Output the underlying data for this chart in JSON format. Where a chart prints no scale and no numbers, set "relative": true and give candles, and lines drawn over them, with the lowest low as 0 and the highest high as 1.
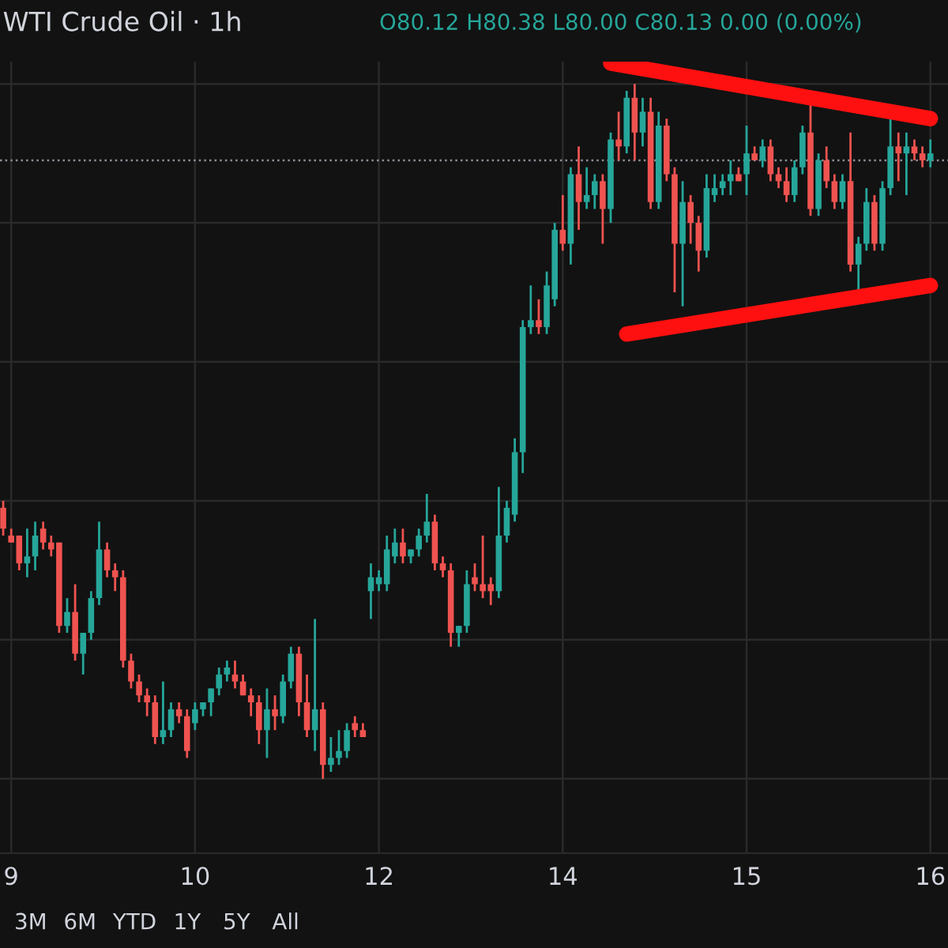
{
  "chart_data": {
    "type": "candlestick",
    "title": "WTI Crude Oil · 1h",
    "relative": true,
    "tick_labels": "x",
    "grid": true,
    "annotations": [
      "O80.12 H80.38 L80.00 C80.13 0.00 (0.00%)",
      "3M",
      "6M",
      "YTD",
      "1Y",
      "5Y",
      "All"
    ],
    "categories": [
      null,
      "9",
      null,
      null,
      null,
      null,
      null,
      null,
      null,
      null,
      null,
      null,
      null,
      null,
      null,
      null,
      null,
      null,
      null,
      null,
      null,
      null,
      null,
      null,
      "10",
      null,
      null,
      null,
      null,
      null,
      null,
      null,
      null,
      null,
      null,
      null,
      null,
      null,
      null,
      null,
      null,
      null,
      null,
      null,
      null,
      null,
      null,
      "12",
      null,
      null,
      null,
      null,
      null,
      null,
      null,
      null,
      null,
      null,
      null,
      null,
      null,
      null,
      null,
      null,
      null,
      null,
      null,
      null,
      null,
      null,
      "14",
      null,
      null,
      null,
      null,
      null,
      null,
      null,
      null,
      null,
      null,
      null,
      null,
      null,
      null,
      null,
      null,
      null,
      null,
      null,
      null,
      null,
      null,
      "15",
      null,
      null,
      null,
      null,
      null,
      null,
      null,
      null,
      null,
      null,
      null,
      null,
      null,
      null,
      null,
      null,
      null,
      null,
      null,
      null,
      null,
      null,
      "16"
    ],
    "ohlc": [
      [
        0.39,
        0.4,
        0.35,
        0.36
      ],
      [
        0.35,
        0.36,
        0.34,
        0.34
      ],
      [
        0.35,
        0.35,
        0.3,
        0.31
      ],
      [
        0.31,
        0.36,
        0.29,
        0.32
      ],
      [
        0.32,
        0.37,
        0.3,
        0.35
      ],
      [
        0.36,
        0.37,
        0.33,
        0.34
      ],
      [
        0.34,
        0.35,
        0.32,
        0.33
      ],
      [
        0.34,
        0.34,
        0.21,
        0.22
      ],
      [
        0.22,
        0.26,
        0.21,
        0.24
      ],
      [
        0.24,
        0.28,
        0.17,
        0.18
      ],
      [
        0.18,
        0.21,
        0.15,
        0.21
      ],
      [
        0.21,
        0.27,
        0.2,
        0.26
      ],
      [
        0.26,
        0.37,
        0.25,
        0.33
      ],
      [
        0.33,
        0.34,
        0.29,
        0.3
      ],
      [
        0.3,
        0.31,
        0.27,
        0.29
      ],
      [
        0.29,
        0.3,
        0.16,
        0.17
      ],
      [
        0.17,
        0.18,
        0.13,
        0.14
      ],
      [
        0.14,
        0.15,
        0.11,
        0.12
      ],
      [
        0.12,
        0.13,
        0.09,
        0.11
      ],
      [
        0.11,
        0.12,
        0.05,
        0.06
      ],
      [
        0.06,
        0.14,
        0.05,
        0.07
      ],
      [
        0.07,
        0.11,
        0.06,
        0.1
      ],
      [
        0.1,
        0.11,
        0.08,
        0.09
      ],
      [
        0.09,
        0.1,
        0.03,
        0.04
      ],
      [
        0.08,
        0.11,
        0.07,
        0.1
      ],
      [
        0.1,
        0.11,
        0.09,
        0.11
      ],
      [
        0.11,
        0.13,
        0.09,
        0.13
      ],
      [
        0.13,
        0.16,
        0.12,
        0.15
      ],
      [
        0.15,
        0.17,
        0.14,
        0.16
      ],
      [
        0.15,
        0.17,
        0.13,
        0.14
      ],
      [
        0.14,
        0.15,
        0.12,
        0.12
      ],
      [
        0.12,
        0.13,
        0.09,
        0.11
      ],
      [
        0.11,
        0.12,
        0.05,
        0.07
      ],
      [
        0.07,
        0.13,
        0.03,
        0.1
      ],
      [
        0.1,
        0.12,
        0.07,
        0.09
      ],
      [
        0.09,
        0.15,
        0.08,
        0.14
      ],
      [
        0.14,
        0.19,
        0.13,
        0.18
      ],
      [
        0.18,
        0.19,
        0.09,
        0.11
      ],
      [
        0.11,
        0.15,
        0.06,
        0.07
      ],
      [
        0.07,
        0.23,
        0.04,
        0.1
      ],
      [
        0.1,
        0.11,
        0.0,
        0.02
      ],
      [
        0.02,
        0.06,
        0.01,
        0.03
      ],
      [
        0.03,
        0.07,
        0.02,
        0.04
      ],
      [
        0.04,
        0.08,
        0.03,
        0.07
      ],
      [
        0.08,
        0.09,
        0.06,
        0.07
      ],
      [
        0.07,
        0.08,
        0.06,
        0.06
      ],
      [
        0.27,
        0.31,
        0.23,
        0.29
      ],
      [
        0.28,
        0.3,
        0.27,
        0.29
      ],
      [
        0.28,
        0.35,
        0.27,
        0.33
      ],
      [
        0.32,
        0.36,
        0.31,
        0.34
      ],
      [
        0.34,
        0.36,
        0.31,
        0.32
      ],
      [
        0.32,
        0.33,
        0.31,
        0.33
      ],
      [
        0.33,
        0.36,
        0.32,
        0.35
      ],
      [
        0.35,
        0.41,
        0.34,
        0.37
      ],
      [
        0.37,
        0.38,
        0.3,
        0.31
      ],
      [
        0.31,
        0.32,
        0.29,
        0.3
      ],
      [
        0.3,
        0.31,
        0.19,
        0.21
      ],
      [
        0.21,
        0.22,
        0.19,
        0.22
      ],
      [
        0.22,
        0.3,
        0.21,
        0.28
      ],
      [
        0.29,
        0.31,
        0.27,
        0.28
      ],
      [
        0.28,
        0.35,
        0.26,
        0.27
      ],
      [
        0.28,
        0.29,
        0.25,
        0.27
      ],
      [
        0.27,
        0.42,
        0.26,
        0.35
      ],
      [
        0.35,
        0.4,
        0.34,
        0.39
      ],
      [
        0.38,
        0.49,
        0.37,
        0.47
      ],
      [
        0.47,
        0.66,
        0.44,
        0.65
      ],
      [
        0.65,
        0.71,
        0.64,
        0.66
      ],
      [
        0.66,
        0.69,
        0.64,
        0.65
      ],
      [
        0.65,
        0.73,
        0.64,
        0.71
      ],
      [
        0.69,
        0.8,
        0.68,
        0.79
      ],
      [
        0.79,
        0.84,
        0.76,
        0.77
      ],
      [
        0.77,
        0.88,
        0.74,
        0.87
      ],
      [
        0.87,
        0.91,
        0.79,
        0.83
      ],
      [
        0.83,
        0.88,
        0.82,
        0.84
      ],
      [
        0.84,
        0.87,
        0.82,
        0.86
      ],
      [
        0.86,
        0.87,
        0.77,
        0.82
      ],
      [
        0.82,
        0.93,
        0.8,
        0.92
      ],
      [
        0.92,
        0.96,
        0.89,
        0.91
      ],
      [
        0.91,
        0.99,
        0.9,
        0.98
      ],
      [
        0.98,
        1.0,
        0.89,
        0.93
      ],
      [
        0.93,
        0.98,
        0.91,
        0.96
      ],
      [
        0.96,
        0.98,
        0.82,
        0.83
      ],
      [
        0.83,
        0.96,
        0.82,
        0.94
      ],
      [
        0.94,
        0.95,
        0.86,
        0.87
      ],
      [
        0.87,
        0.88,
        0.7,
        0.77
      ],
      [
        0.77,
        0.86,
        0.68,
        0.83
      ],
      [
        0.83,
        0.84,
        0.77,
        0.8
      ],
      [
        0.8,
        0.81,
        0.73,
        0.76
      ],
      [
        0.76,
        0.87,
        0.75,
        0.85
      ],
      [
        0.84,
        0.87,
        0.83,
        0.85
      ],
      [
        0.85,
        0.87,
        0.84,
        0.86
      ],
      [
        0.86,
        0.89,
        0.84,
        0.87
      ],
      [
        0.87,
        0.88,
        0.86,
        0.86
      ],
      [
        0.87,
        0.94,
        0.84,
        0.9
      ],
      [
        0.9,
        0.91,
        0.89,
        0.89
      ],
      [
        0.89,
        0.92,
        0.88,
        0.91
      ],
      [
        0.91,
        0.92,
        0.86,
        0.87
      ],
      [
        0.87,
        0.88,
        0.85,
        0.86
      ],
      [
        0.86,
        0.88,
        0.83,
        0.84
      ],
      [
        0.84,
        0.89,
        0.83,
        0.88
      ],
      [
        0.88,
        0.94,
        0.87,
        0.93
      ],
      [
        0.93,
        0.97,
        0.81,
        0.82
      ],
      [
        0.82,
        0.9,
        0.81,
        0.89
      ],
      [
        0.89,
        0.91,
        0.85,
        0.86
      ],
      [
        0.86,
        0.87,
        0.82,
        0.83
      ],
      [
        0.83,
        0.87,
        0.82,
        0.86
      ],
      [
        0.86,
        0.93,
        0.73,
        0.74
      ],
      [
        0.74,
        0.78,
        0.7,
        0.77
      ],
      [
        0.77,
        0.85,
        0.76,
        0.83
      ],
      [
        0.83,
        0.84,
        0.76,
        0.77
      ],
      [
        0.77,
        0.86,
        0.76,
        0.85
      ],
      [
        0.85,
        0.95,
        0.84,
        0.91
      ],
      [
        0.91,
        0.93,
        0.86,
        0.9
      ],
      [
        0.9,
        0.93,
        0.84,
        0.91
      ],
      [
        0.91,
        0.92,
        0.89,
        0.9
      ],
      [
        0.9,
        0.91,
        0.88,
        0.89
      ],
      [
        0.89,
        0.92,
        0.88,
        0.9
      ]
    ],
    "colors": [
      "#ef5350",
      "#ef5350",
      "#ef5350",
      "#26a69a",
      "#26a69a",
      "#ef5350",
      "#ef5350",
      "#ef5350",
      "#26a69a",
      "#ef5350",
      "#26a69a",
      "#26a69a",
      "#26a69a",
      "#ef5350",
      "#ef5350",
      "#ef5350",
      "#ef5350",
      "#ef5350",
      "#ef5350",
      "#ef5350",
      "#26a69a",
      "#26a69a",
      "#ef5350",
      "#ef5350",
      "#26a69a",
      "#26a69a",
      "#26a69a",
      "#26a69a",
      "#26a69a",
      "#ef5350",
      "#ef5350",
      "#ef5350",
      "#ef5350",
      "#26a69a",
      "#ef5350",
      "#26a69a",
      "#26a69a",
      "#ef5350",
      "#ef5350",
      "#26a69a",
      "#ef5350",
      "#26a69a",
      "#26a69a",
      "#26a69a",
      "#ef5350",
      "#ef5350",
      "#26a69a",
      "#26a69a",
      "#26a69a",
      "#26a69a",
      "#ef5350",
      "#26a69a",
      "#26a69a",
      "#26a69a",
      "#ef5350",
      "#ef5350",
      "#ef5350",
      "#26a69a",
      "#26a69a",
      "#ef5350",
      "#ef5350",
      "#ef5350",
      "#26a69a",
      "#26a69a",
      "#26a69a",
      "#26a69a",
      "#26a69a",
      "#ef5350",
      "#26a69a",
      "#26a69a",
      "#ef5350",
      "#26a69a",
      "#ef5350",
      "#26a69a",
      "#26a69a",
      "#ef5350",
      "#26a69a",
      "#ef5350",
      "#26a69a",
      "#ef5350",
      "#26a69a",
      "#ef5350",
      "#26a69a",
      "#ef5350",
      "#ef5350",
      "#26a69a",
      "#ef5350",
      "#ef5350",
      "#26a69a",
      "#26a69a",
      "#26a69a",
      "#26a69a",
      "#ef5350",
      "#26a69a",
      "#ef5350",
      "#26a69a",
      "#ef5350",
      "#ef5350",
      "#ef5350",
      "#26a69a",
      "#26a69a",
      "#ef5350",
      "#26a69a",
      "#ef5350",
      "#ef5350",
      "#26a69a",
      "#ef5350",
      "#26a69a",
      "#26a69a",
      "#ef5350",
      "#26a69a",
      "#26a69a",
      "#ef5350",
      "#26a69a",
      "#ef5350",
      "#ef5350",
      "#26a69a"
    ],
    "series": [
      {
        "type": "line",
        "color": "#ff1010",
        "values": [
          null,
          null,
          null,
          null,
          null,
          null,
          null,
          null,
          null,
          null,
          null,
          null,
          null,
          null,
          null,
          null,
          null,
          null,
          null,
          null,
          null,
          null,
          null,
          null,
          null,
          null,
          null,
          null,
          null,
          null,
          null,
          null,
          null,
          null,
          null,
          null,
          null,
          null,
          null,
          null,
          null,
          null,
          null,
          null,
          null,
          null,
          null,
          null,
          null,
          null,
          null,
          null,
          null,
          null,
          null,
          null,
          null,
          null,
          null,
          null,
          null,
          null,
          null,
          null,
          null,
          null,
          null,
          null,
          null,
          null,
          null,
          null,
          null,
          null,
          null,
          null,
          1.03,
          null,
          null,
          null,
          null,
          null,
          null,
          null,
          null,
          null,
          null,
          null,
          null,
          null,
          null,
          null,
          null,
          null,
          null,
          null,
          null,
          null,
          null,
          null,
          null,
          null,
          null,
          null,
          null,
          null,
          null,
          null,
          null,
          null,
          null,
          null,
          null,
          null,
          null,
          null,
          0.95
        ]
      },
      {
        "type": "line",
        "color": "#ff1010",
        "values": [
          null,
          null,
          null,
          null,
          null,
          null,
          null,
          null,
          null,
          null,
          null,
          null,
          null,
          null,
          null,
          null,
          null,
          null,
          null,
          null,
          null,
          null,
          null,
          null,
          null,
          null,
          null,
          null,
          null,
          null,
          null,
          null,
          null,
          null,
          null,
          null,
          null,
          null,
          null,
          null,
          null,
          null,
          null,
          null,
          null,
          null,
          null,
          null,
          null,
          null,
          null,
          null,
          null,
          null,
          null,
          null,
          null,
          null,
          null,
          null,
          null,
          null,
          null,
          null,
          null,
          null,
          null,
          null,
          null,
          null,
          null,
          null,
          null,
          null,
          null,
          null,
          null,
          null,
          0.64,
          null,
          null,
          null,
          null,
          null,
          null,
          null,
          null,
          null,
          null,
          null,
          null,
          null,
          null,
          null,
          null,
          null,
          null,
          null,
          null,
          null,
          null,
          null,
          null,
          null,
          null,
          null,
          null,
          null,
          null,
          null,
          null,
          null,
          null,
          null,
          null,
          null,
          0.71
        ]
      }
    ],
    "ref_lines": [
      {
        "axis": "y",
        "value": 0.89,
        "color": "#8a8f98",
        "line_style": "dotted"
      }
    ]
  }
}
